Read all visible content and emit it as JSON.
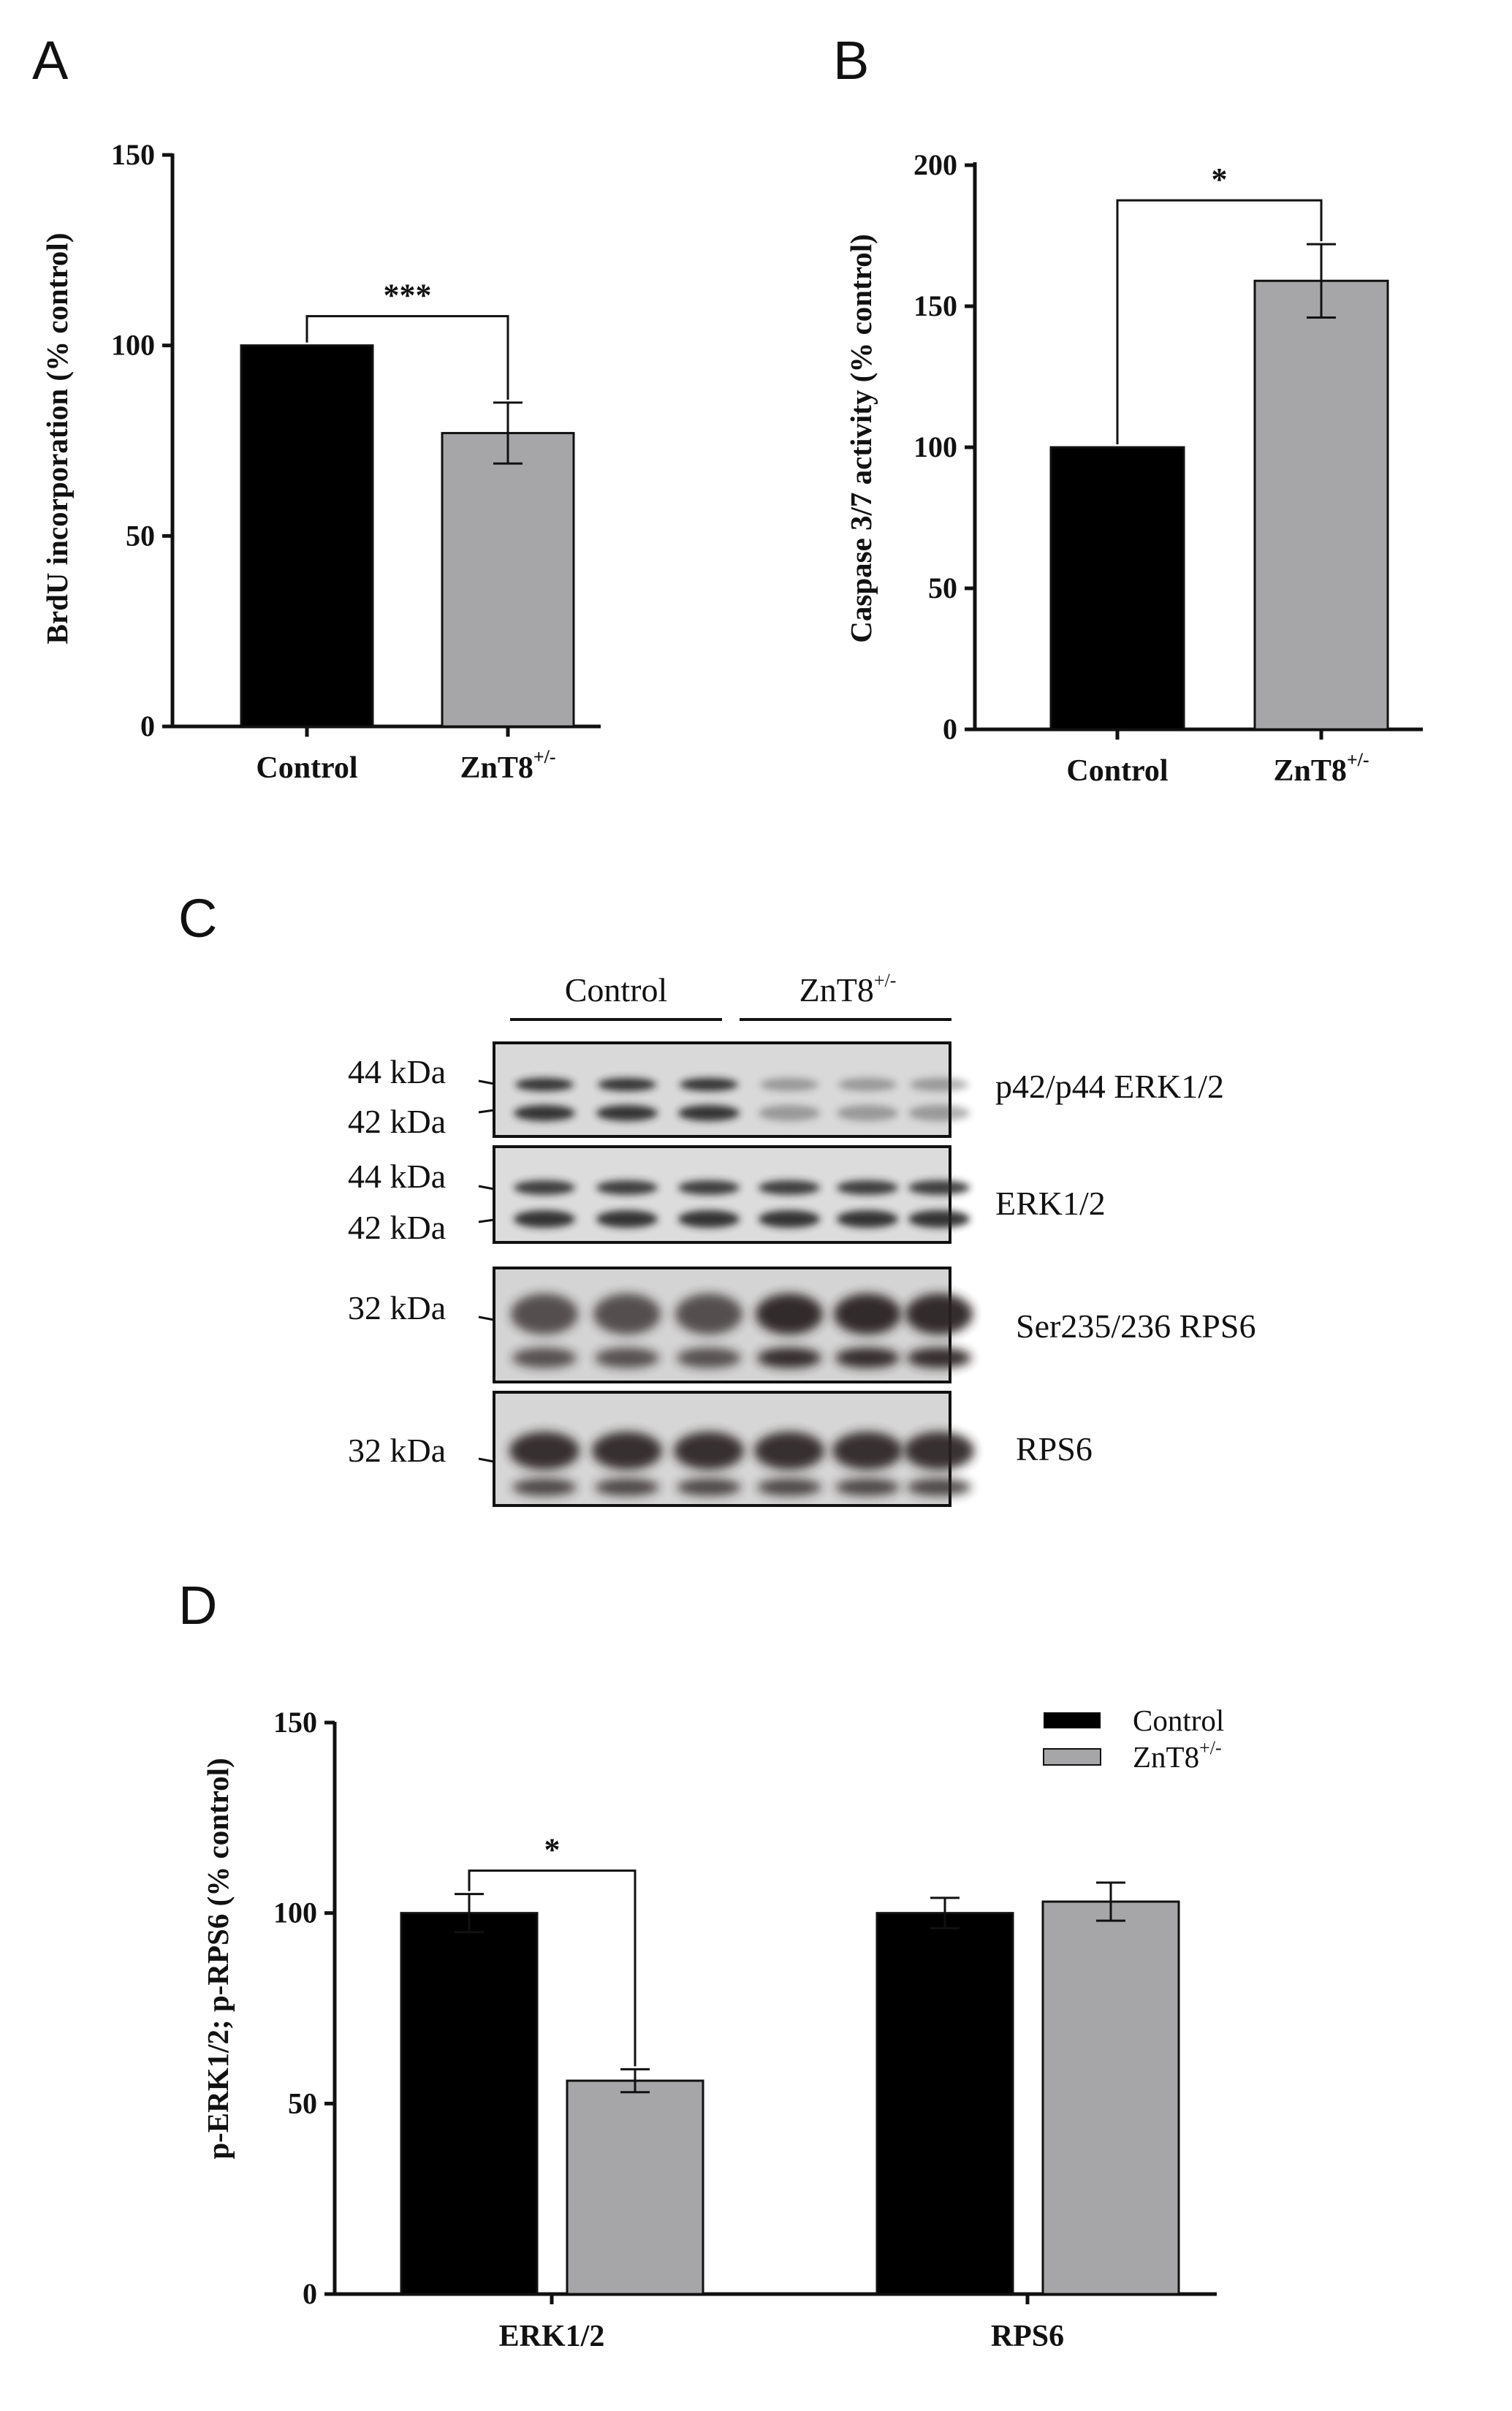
{
  "panels": {
    "a": "A",
    "b": "B",
    "c": "C",
    "d": "D"
  },
  "chart_data": [
    {
      "id": "A",
      "type": "bar",
      "categories": [
        "Control",
        "ZnT8"
      ],
      "category_superscripts": [
        "",
        "+/-"
      ],
      "values": [
        100,
        77
      ],
      "errors": [
        0,
        8
      ],
      "colors": [
        "#000000",
        "#a6a6a8"
      ],
      "ylabel": "BrdU incorporation (% control)",
      "ylim": [
        0,
        150
      ],
      "yticks": [
        0,
        50,
        100,
        150
      ],
      "significance": [
        {
          "between": [
            0,
            1
          ],
          "label": "***"
        }
      ]
    },
    {
      "id": "B",
      "type": "bar",
      "categories": [
        "Control",
        "ZnT8"
      ],
      "category_superscripts": [
        "",
        "+/-"
      ],
      "values": [
        100,
        159
      ],
      "errors": [
        0,
        13
      ],
      "colors": [
        "#000000",
        "#a6a6a8"
      ],
      "ylabel": "Caspase 3/7 activity (% control)",
      "ylim": [
        0,
        200
      ],
      "yticks": [
        0,
        50,
        100,
        150,
        200
      ],
      "significance": [
        {
          "between": [
            0,
            1
          ],
          "label": "*"
        }
      ]
    },
    {
      "id": "D",
      "type": "bar",
      "categories": [
        "ERK1/2",
        "RPS6"
      ],
      "series": [
        {
          "name": "Control",
          "values": [
            100,
            100
          ],
          "errors": [
            5,
            4
          ],
          "color": "#000000"
        },
        {
          "name": "ZnT8",
          "name_superscript": "+/-",
          "values": [
            56,
            103
          ],
          "errors": [
            3,
            5
          ],
          "color": "#a6a6a8"
        }
      ],
      "ylabel": "p-ERK1/2; p-RPS6 (% control)",
      "ylim": [
        0,
        150
      ],
      "yticks": [
        0,
        50,
        100,
        150
      ],
      "legend": "top-right",
      "significance": [
        {
          "category": 0,
          "label": "*"
        }
      ]
    }
  ],
  "blot": {
    "groups": [
      {
        "label": "Control",
        "superscript": ""
      },
      {
        "label": "ZnT8",
        "superscript": "+/-"
      }
    ],
    "rows": [
      {
        "markers": [
          "44 kDa",
          "42 kDa"
        ],
        "label": "p42/p44 ERK1/2"
      },
      {
        "markers": [
          "44 kDa",
          "42 kDa"
        ],
        "label": "ERK1/2"
      },
      {
        "markers": [
          "32 kDa"
        ],
        "label": "Ser235/236 RPS6"
      },
      {
        "markers": [
          "32 kDa"
        ],
        "label": "RPS6"
      }
    ]
  }
}
